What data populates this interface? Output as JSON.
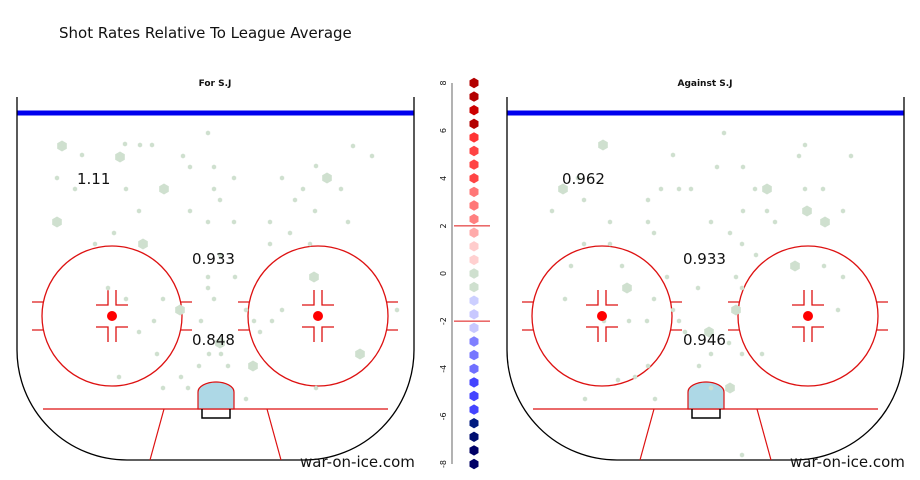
{
  "title": "Shot Rates Relative To League Average",
  "credit": "war-on-ice.com",
  "chart_data": {
    "type": "heatmap",
    "panels": [
      {
        "title": "For S.J",
        "zone_values": {
          "high_slot": "1.11",
          "mid_slot": "0.933",
          "low_slot": "0.848"
        },
        "dots": [
          [
            62,
            146
          ],
          [
            82,
            155
          ],
          [
            125,
            144
          ],
          [
            140,
            145
          ],
          [
            152,
            145
          ],
          [
            208,
            133
          ],
          [
            183,
            156
          ],
          [
            120,
            157
          ],
          [
            353,
            146
          ],
          [
            316,
            166
          ],
          [
            372,
            156
          ],
          [
            57,
            178
          ],
          [
            75,
            189
          ],
          [
            126,
            189
          ],
          [
            164,
            189
          ],
          [
            214,
            189
          ],
          [
            234,
            178
          ],
          [
            214,
            167
          ],
          [
            190,
            167
          ],
          [
            282,
            178
          ],
          [
            303,
            189
          ],
          [
            327,
            178
          ],
          [
            341,
            189
          ],
          [
            295,
            200
          ],
          [
            139,
            211
          ],
          [
            220,
            200
          ],
          [
            190,
            211
          ],
          [
            315,
            211
          ],
          [
            57,
            222
          ],
          [
            208,
            222
          ],
          [
            234,
            222
          ],
          [
            270,
            222
          ],
          [
            348,
            222
          ],
          [
            114,
            233
          ],
          [
            95,
            244
          ],
          [
            143,
            244
          ],
          [
            290,
            233
          ],
          [
            310,
            244
          ],
          [
            220,
            255
          ],
          [
            270,
            244
          ],
          [
            208,
            277
          ],
          [
            235,
            277
          ],
          [
            314,
            277
          ],
          [
            208,
            288
          ],
          [
            108,
            288
          ],
          [
            126,
            299
          ],
          [
            163,
            299
          ],
          [
            214,
            299
          ],
          [
            246,
            310
          ],
          [
            180,
            310
          ],
          [
            282,
            310
          ],
          [
            201,
            321
          ],
          [
            254,
            321
          ],
          [
            272,
            321
          ],
          [
            154,
            321
          ],
          [
            139,
            332
          ],
          [
            220,
            343
          ],
          [
            260,
            332
          ],
          [
            157,
            354
          ],
          [
            209,
            354
          ],
          [
            221,
            354
          ],
          [
            199,
            366
          ],
          [
            228,
            366
          ],
          [
            253,
            366
          ],
          [
            181,
            377
          ],
          [
            119,
            377
          ],
          [
            163,
            388
          ],
          [
            188,
            388
          ],
          [
            246,
            399
          ],
          [
            316,
            388
          ],
          [
            360,
            354
          ],
          [
            397,
            310
          ]
        ]
      },
      {
        "title": "Against S.J",
        "zone_values": {
          "high_slot": "0.962",
          "mid_slot": "0.933",
          "low_slot": "0.946"
        },
        "dots": [
          [
            603,
            145
          ],
          [
            673,
            155
          ],
          [
            724,
            133
          ],
          [
            805,
            145
          ],
          [
            799,
            156
          ],
          [
            851,
            156
          ],
          [
            578,
            178
          ],
          [
            563,
            189
          ],
          [
            661,
            189
          ],
          [
            679,
            189
          ],
          [
            691,
            189
          ],
          [
            717,
            167
          ],
          [
            743,
            167
          ],
          [
            755,
            189
          ],
          [
            767,
            189
          ],
          [
            805,
            189
          ],
          [
            823,
            189
          ],
          [
            584,
            200
          ],
          [
            648,
            200
          ],
          [
            743,
            211
          ],
          [
            767,
            211
          ],
          [
            807,
            211
          ],
          [
            843,
            211
          ],
          [
            552,
            211
          ],
          [
            610,
            222
          ],
          [
            648,
            222
          ],
          [
            711,
            222
          ],
          [
            775,
            222
          ],
          [
            825,
            222
          ],
          [
            654,
            233
          ],
          [
            584,
            244
          ],
          [
            610,
            244
          ],
          [
            730,
            233
          ],
          [
            742,
            244
          ],
          [
            756,
            255
          ],
          [
            795,
            266
          ],
          [
            824,
            266
          ],
          [
            571,
            266
          ],
          [
            622,
            266
          ],
          [
            667,
            277
          ],
          [
            736,
            277
          ],
          [
            843,
            277
          ],
          [
            627,
            288
          ],
          [
            698,
            288
          ],
          [
            742,
            288
          ],
          [
            654,
            299
          ],
          [
            565,
            299
          ],
          [
            673,
            310
          ],
          [
            679,
            321
          ],
          [
            736,
            310
          ],
          [
            838,
            310
          ],
          [
            604,
            321
          ],
          [
            629,
            321
          ],
          [
            647,
            321
          ],
          [
            685,
            332
          ],
          [
            729,
            343
          ],
          [
            709,
            332
          ],
          [
            711,
            354
          ],
          [
            742,
            354
          ],
          [
            762,
            354
          ],
          [
            648,
            366
          ],
          [
            635,
            377
          ],
          [
            699,
            366
          ],
          [
            730,
            388
          ],
          [
            711,
            388
          ],
          [
            585,
            399
          ],
          [
            742,
            455
          ],
          [
            655,
            399
          ],
          [
            618,
            380
          ]
        ]
      }
    ],
    "colorbar": {
      "ticks": [
        "8",
        "6",
        "4",
        "2",
        "0",
        "-2",
        "-4",
        "-6",
        "-8"
      ],
      "range": [
        -8,
        8
      ],
      "colors": [
        "#b30000",
        "#b30000",
        "#cc0000",
        "#b30000",
        "#ff3333",
        "#ff4444",
        "#ff4444",
        "#ff4444",
        "#ff7777",
        "#ff7777",
        "#ff8080",
        "#ffaaaa",
        "#ffcccc",
        "#ffd0d0",
        "#cfe0cf",
        "#cfe0cf",
        "#cccfff",
        "#c8c8ff",
        "#c8c8ff",
        "#8080ff",
        "#7777ff",
        "#7070ff",
        "#4444ff",
        "#4444ff",
        "#4444ff",
        "#001a80",
        "#000e70",
        "#000066",
        "#000066"
      ]
    },
    "colors": {
      "rink_line": "#dd1111",
      "blue_line": "#0000ee",
      "crease": "#add8e6",
      "dot": "#cfe0cf",
      "faceoff_dot": "#ff0000"
    }
  }
}
